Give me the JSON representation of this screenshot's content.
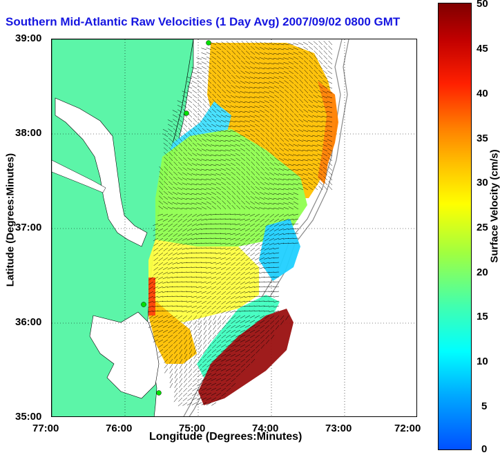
{
  "title": "Southern Mid-Atlantic Raw Velocities (1 Day Avg) 2007/09/02 0800 GMT",
  "x_axis": {
    "label": "Longitude (Degrees:Minutes)",
    "ticks": [
      "77:00",
      "76:00",
      "75:00",
      "74:00",
      "73:00",
      "72:00"
    ]
  },
  "y_axis": {
    "label": "Latitude (Degrees:Minutes)",
    "ticks": [
      "39:00",
      "38:00",
      "37:00",
      "36:00",
      "35:00"
    ]
  },
  "colorbar": {
    "label": "Surface Velocity (cm/s)",
    "ticks": [
      "50",
      "45",
      "40",
      "35",
      "30",
      "25",
      "20",
      "15",
      "10",
      "5",
      "0"
    ],
    "range": [
      0,
      50
    ],
    "colormap": "jet"
  },
  "colors": {
    "land": "#5cf5a8",
    "title": "#1515e0",
    "vector": "#000000"
  }
}
